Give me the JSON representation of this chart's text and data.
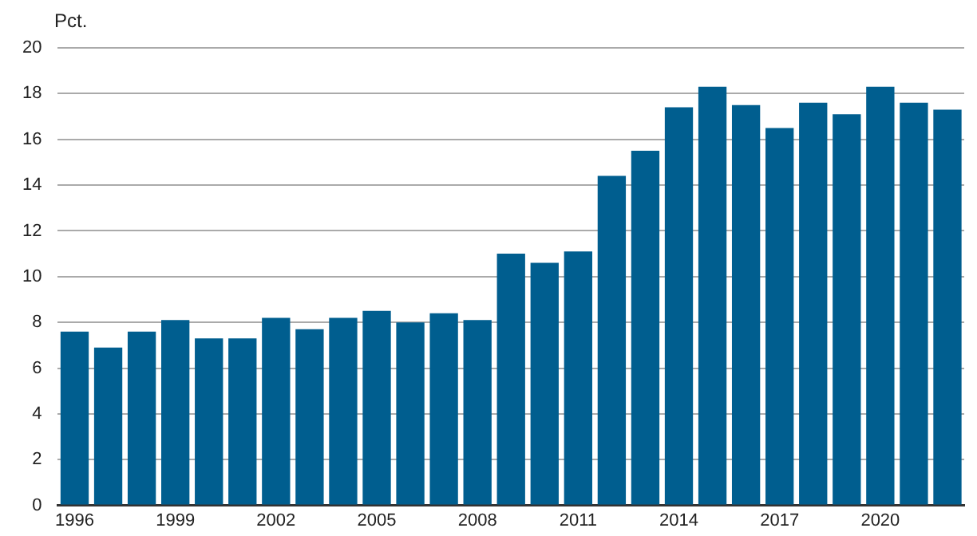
{
  "chart_data": {
    "type": "bar",
    "ylabel": "Pct.",
    "categories": [
      "1996",
      null,
      null,
      "1999",
      null,
      null,
      "2002",
      null,
      null,
      "2005",
      null,
      null,
      "2008",
      null,
      null,
      "2011",
      null,
      null,
      "2014",
      null,
      null,
      "2017",
      null,
      null,
      "2020",
      null,
      null
    ],
    "values": [
      7.6,
      6.9,
      7.6,
      8.1,
      7.3,
      7.3,
      8.2,
      7.7,
      8.2,
      8.5,
      8.0,
      8.4,
      8.1,
      11.0,
      10.6,
      11.1,
      14.4,
      15.5,
      17.4,
      18.3,
      17.5,
      16.5,
      17.6,
      17.1,
      18.3,
      17.6,
      17.3
    ],
    "color": "#005e8f",
    "ylim": [
      0,
      20
    ],
    "yticks": [
      0,
      2,
      4,
      6,
      8,
      10,
      12,
      14,
      16,
      18,
      20
    ],
    "grid": "y",
    "legend": false
  }
}
